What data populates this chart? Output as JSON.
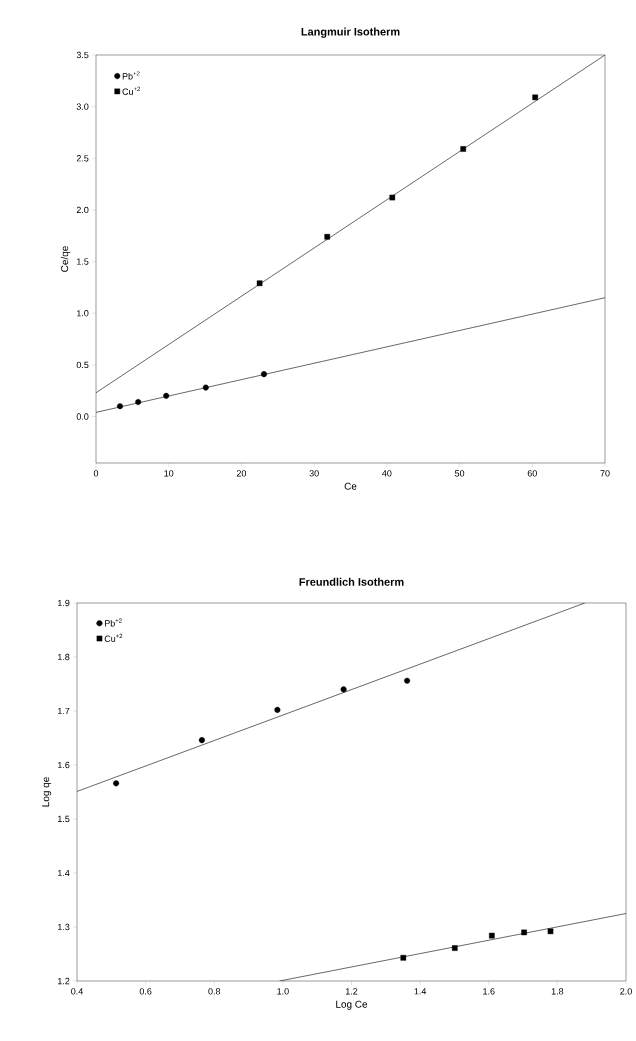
{
  "chart_data": [
    {
      "type": "scatter",
      "title": "Langmuir Isotherm",
      "xlabel": "Ce",
      "ylabel": "Ce/qe",
      "xlim": [
        0,
        70
      ],
      "ylim": [
        -0.45,
        3.5
      ],
      "xticks": [
        0,
        10,
        20,
        30,
        40,
        50,
        60,
        70
      ],
      "yticks": [
        {
          "value": 0,
          "label": "0.0"
        },
        0.5,
        {
          "value": 1,
          "label": "1.0"
        },
        1.5,
        {
          "value": 2,
          "label": "2.0"
        },
        2.5,
        {
          "value": 3,
          "label": "3.0"
        },
        3.5
      ],
      "legend": "top left",
      "grid": false,
      "series": [
        {
          "name": "Pb$^{+2}$",
          "marker": "circle",
          "color": "#000000",
          "x": [
            3.3,
            5.8,
            9.65,
            15.1,
            23.1
          ],
          "values": [
            0.1,
            0.14,
            0.2,
            0.28,
            0.41
          ]
        },
        {
          "name": "Cu$^{+2}$",
          "marker": "square",
          "color": "#000000",
          "x": [
            22.5,
            31.8,
            40.75,
            50.5,
            60.4
          ],
          "values": [
            1.29,
            1.74,
            2.12,
            2.59,
            3.09
          ]
        },
        {
          "type": "line",
          "marker": "none",
          "line_style": "solid",
          "color": "#000000",
          "x": [
            0,
            70
          ],
          "values": [
            0.04,
            1.15
          ]
        },
        {
          "type": "line",
          "marker": "none",
          "line_style": "solid",
          "color": "#000000",
          "x": [
            0,
            70
          ],
          "values": [
            0.23,
            3.5
          ]
        }
      ]
    },
    {
      "type": "scatter",
      "title": "Freundlich Isotherm",
      "xlabel": "Log Ce",
      "ylabel": "Log qe",
      "xlim": [
        0.4,
        2.0
      ],
      "ylim": [
        1.2,
        1.9
      ],
      "xticks": [
        0.4,
        0.6,
        0.8,
        {
          "value": 1,
          "label": "1.0"
        },
        1.2,
        1.4,
        1.6,
        1.8,
        {
          "value": 2,
          "label": "2.0"
        }
      ],
      "yticks": [
        1.2,
        1.3,
        1.4,
        1.5,
        1.6,
        1.7,
        1.8,
        1.9
      ],
      "legend": "top left",
      "grid": false,
      "series": [
        {
          "name": "Pb$^{+2}$",
          "marker": "circle",
          "color": "#000000",
          "x": [
            0.514,
            0.764,
            0.984,
            1.177,
            1.362
          ],
          "values": [
            1.566,
            1.646,
            1.702,
            1.74,
            1.756
          ]
        },
        {
          "name": "Cu$^{+2}$",
          "marker": "square",
          "color": "#000000",
          "x": [
            1.351,
            1.501,
            1.609,
            1.703,
            1.78
          ],
          "values": [
            1.243,
            1.261,
            1.284,
            1.29,
            1.292
          ]
        },
        {
          "type": "line",
          "marker": "none",
          "line_style": "solid",
          "color": "#000000",
          "x": [
            0.4,
            1.88
          ],
          "values": [
            1.551,
            1.9
          ]
        },
        {
          "type": "line",
          "marker": "none",
          "line_style": "solid",
          "color": "#000000",
          "x": [
            0.99,
            2.0
          ],
          "values": [
            1.2,
            1.325
          ]
        }
      ]
    }
  ]
}
